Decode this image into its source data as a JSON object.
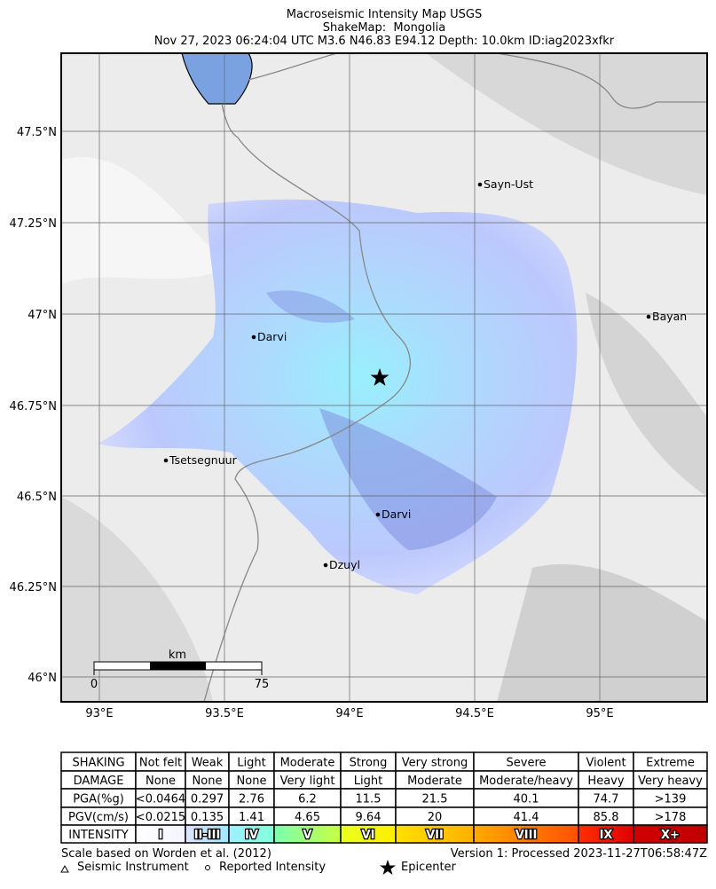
{
  "header": {
    "title": "Macroseismic Intensity Map USGS",
    "subtitle": "ShakeMap:  Mongolia",
    "event": "Nov 27, 2023 06:24:04 UTC M3.6 N46.83 E94.12 Depth: 10.0km ID:iag2023xfkr"
  },
  "map": {
    "lat_labels": [
      "47.5°N",
      "47.25°N",
      "47°N",
      "46.75°N",
      "46.5°N",
      "46.25°N",
      "46°N"
    ],
    "lon_labels": [
      "93°E",
      "93.5°E",
      "94°E",
      "94.5°E",
      "95°E"
    ],
    "places": [
      "Sayn-Ust",
      "Bayan",
      "Darvi",
      "Tsetsegnuur",
      "Darvi",
      "Dzuyl"
    ],
    "scale": {
      "unit": "km",
      "start": "0",
      "end": "75"
    }
  },
  "table": {
    "rows": [
      [
        "SHAKING",
        "Not felt",
        "Weak",
        "Light",
        "Moderate",
        "Strong",
        "Very strong",
        "Severe",
        "Violent",
        "Extreme"
      ],
      [
        "DAMAGE",
        "None",
        "None",
        "None",
        "Very light",
        "Light",
        "Moderate",
        "Moderate/heavy",
        "Heavy",
        "Very heavy"
      ],
      [
        "PGA(%g)",
        "<0.0464",
        "0.297",
        "2.76",
        "6.2",
        "11.5",
        "21.5",
        "40.1",
        "74.7",
        ">139"
      ],
      [
        "PGV(cm/s)",
        "<0.0215",
        "0.135",
        "1.41",
        "4.65",
        "9.64",
        "20",
        "41.4",
        "85.8",
        ">178"
      ],
      [
        "INTENSITY",
        "I",
        "II-III",
        "IV",
        "V",
        "VI",
        "VII",
        "VIII",
        "IX",
        "X+"
      ]
    ]
  },
  "footer": {
    "left": "Scale based on Worden et al. (2012)",
    "right": "Version 1: Processed 2023-11-27T06:58:47Z",
    "legend": [
      "Seismic Instrument",
      "Reported Intensity",
      "Epicenter"
    ]
  }
}
